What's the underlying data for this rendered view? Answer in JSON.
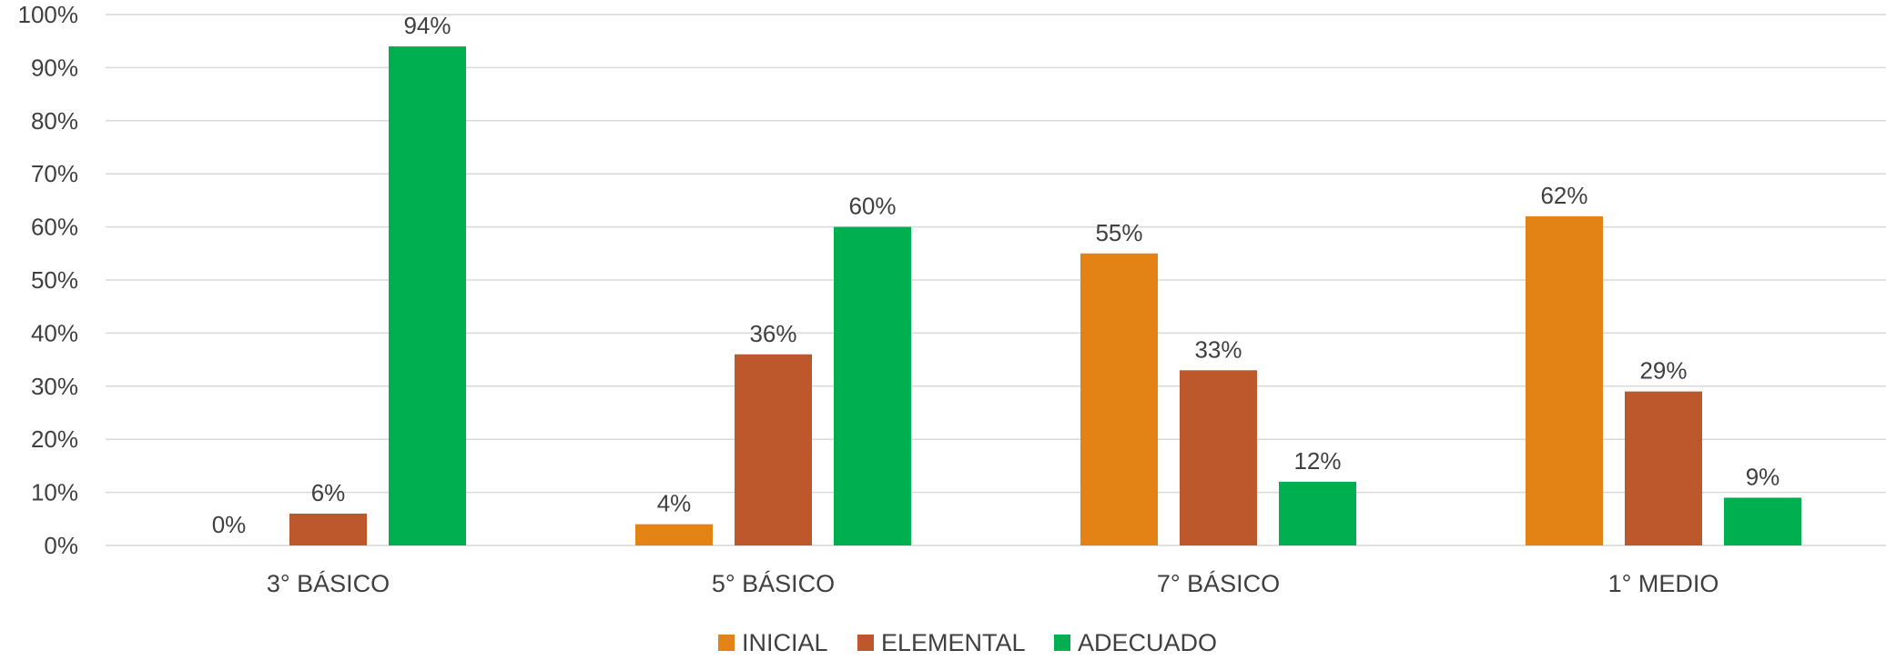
{
  "chart_data": {
    "type": "bar",
    "categories": [
      "3° BÁSICO",
      "5° BÁSICO",
      "7° BÁSICO",
      "1° MEDIO"
    ],
    "series": [
      {
        "name": "INICIAL",
        "color": "#E38316",
        "values": [
          0,
          4,
          55,
          62
        ]
      },
      {
        "name": "ELEMENTAL",
        "color": "#BD582C",
        "values": [
          6,
          36,
          33,
          29
        ]
      },
      {
        "name": "ADECUADO",
        "color": "#00AF50",
        "values": [
          94,
          60,
          12,
          9
        ]
      }
    ],
    "data_labels": [
      [
        "0%",
        "4%",
        "55%",
        "62%"
      ],
      [
        "6%",
        "36%",
        "33%",
        "29%"
      ],
      [
        "94%",
        "60%",
        "12%",
        "9%"
      ]
    ],
    "y_ticks": [
      {
        "value": 0,
        "label": "0%"
      },
      {
        "value": 10,
        "label": "10%"
      },
      {
        "value": 20,
        "label": "20%"
      },
      {
        "value": 30,
        "label": "30%"
      },
      {
        "value": 40,
        "label": "40%"
      },
      {
        "value": 50,
        "label": "50%"
      },
      {
        "value": 60,
        "label": "60%"
      },
      {
        "value": 70,
        "label": "70%"
      },
      {
        "value": 80,
        "label": "80%"
      },
      {
        "value": 90,
        "label": "90%"
      },
      {
        "value": 100,
        "label": "100%"
      }
    ],
    "ylim": [
      0,
      100
    ],
    "grid": true,
    "gridline_color": "#D9D9D9",
    "legend_position": "bottom",
    "title": "",
    "xlabel": "",
    "ylabel": ""
  }
}
